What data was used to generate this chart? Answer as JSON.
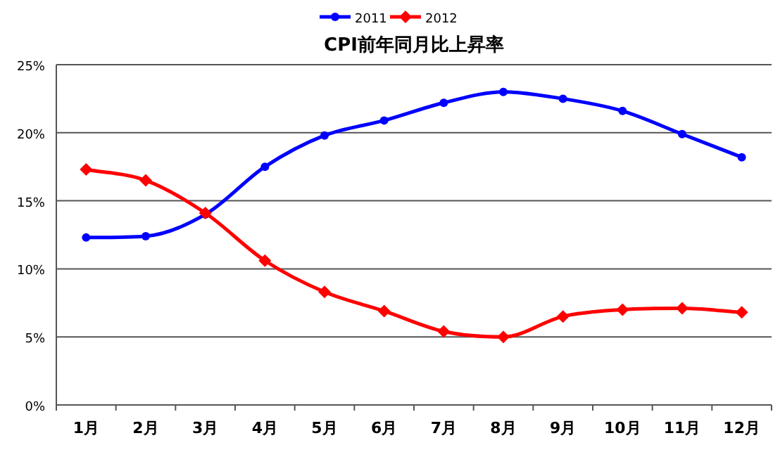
{
  "chart_data": {
    "type": "line",
    "title": "CPI前年同月比上昇率",
    "categories": [
      "1月",
      "2月",
      "3月",
      "4月",
      "5月",
      "6月",
      "7月",
      "8月",
      "9月",
      "10月",
      "11月",
      "12月"
    ],
    "series": [
      {
        "name": "2011",
        "color": "#0000ff",
        "marker": "circle",
        "values": [
          12.3,
          12.4,
          14.0,
          17.5,
          19.8,
          20.9,
          22.2,
          23.0,
          22.5,
          21.6,
          19.9,
          18.2
        ]
      },
      {
        "name": "2012",
        "color": "#ff0000",
        "marker": "diamond",
        "values": [
          17.3,
          16.5,
          14.1,
          10.6,
          8.3,
          6.9,
          5.4,
          5.0,
          6.5,
          7.0,
          7.1,
          6.8
        ]
      }
    ],
    "ylim": [
      0,
      25
    ],
    "yticks": [
      {
        "value": 0,
        "label": "0%"
      },
      {
        "value": 5,
        "label": "5%"
      },
      {
        "value": 10,
        "label": "10%"
      },
      {
        "value": 15,
        "label": "15%"
      },
      {
        "value": 20,
        "label": "20%"
      },
      {
        "value": 25,
        "label": "25%"
      }
    ],
    "grid": "y",
    "legend": "top"
  }
}
